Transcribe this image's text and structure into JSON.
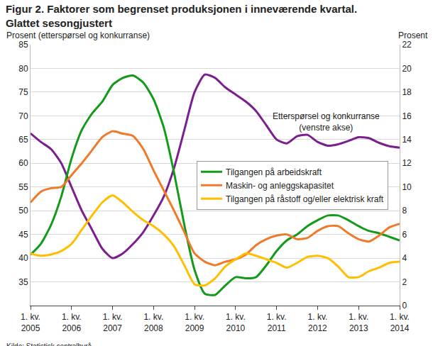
{
  "chart_data": {
    "type": "line",
    "title": "Figur 2. Faktorer som begrenset produksjonen i inneværende kvartal.",
    "subtitle": "Glattet sesongjustert",
    "y_label": "Prosent (etterspørsel og konkurranse)",
    "y2_label": "Prosent",
    "source": "Kilde: Statistisk sentralbyrå.",
    "categories": [
      "1. kv. 2005",
      null,
      null,
      null,
      "1. kv. 2006",
      null,
      null,
      null,
      "1. kv. 2007",
      null,
      null,
      null,
      "1. kv. 2008",
      null,
      null,
      null,
      "1. kv. 2009",
      null,
      null,
      null,
      "1. kv. 2010",
      null,
      null,
      null,
      "1. kv. 2011",
      null,
      null,
      null,
      "1. kv. 2012",
      null,
      null,
      null,
      "1. kv. 2013",
      null,
      null,
      null,
      "1. kv. 2014"
    ],
    "series": [
      {
        "name": "Etterspørsel og konkurranse (venstre akse)",
        "color": "#7b1f8f",
        "axis": "y",
        "values": [
          66.3,
          64.5,
          63,
          60,
          55,
          50,
          46,
          42,
          40,
          41,
          43,
          45.5,
          49,
          53,
          59,
          67,
          75,
          78.7,
          78,
          76,
          74.5,
          73,
          71,
          68,
          65,
          64.2,
          65.7,
          66,
          64.5,
          63.7,
          64,
          64.7,
          65.5,
          65.3,
          64.3,
          63.6,
          63.3
        ]
      },
      {
        "name": "Tilgangen på arbeidskraft",
        "color": "#139a1a",
        "axis": "y2",
        "values": [
          4.3,
          5.2,
          6.8,
          9.2,
          12.4,
          14.8,
          16.2,
          17.2,
          18.6,
          19.2,
          19.4,
          18.8,
          17.4,
          15.0,
          11.2,
          6.8,
          3.0,
          1.0,
          0.9,
          1.7,
          2.4,
          2.3,
          2.4,
          3.4,
          4.6,
          5.5,
          6.0,
          6.7,
          7.2,
          7.6,
          7.6,
          7.2,
          6.7,
          6.3,
          6.1,
          5.8,
          5.5
        ]
      },
      {
        "name": "Maskin- og anleggskapasitet",
        "color": "#f07a2a",
        "axis": "y2",
        "values": [
          8.7,
          9.6,
          9.9,
          10.0,
          11.0,
          12.0,
          13.1,
          14.2,
          14.7,
          14.5,
          14.3,
          13.2,
          11.4,
          9.7,
          8.0,
          6.2,
          4.4,
          3.7,
          3.4,
          3.7,
          3.9,
          4.3,
          5.1,
          5.6,
          5.9,
          6.0,
          5.6,
          5.7,
          6.3,
          6.7,
          6.7,
          6.1,
          5.6,
          5.4,
          5.9,
          6.6,
          6.9
        ]
      },
      {
        "name": "Tilgangen på råstoff og/eller elektrisk kraft",
        "color": "#ffbf00",
        "axis": "y2",
        "values": [
          4.4,
          4.2,
          4.3,
          4.6,
          5.2,
          6.4,
          7.6,
          8.7,
          9.3,
          8.7,
          7.9,
          7.2,
          6.7,
          6.0,
          5.0,
          3.4,
          1.8,
          1.7,
          2.3,
          3.3,
          3.9,
          4.4,
          4.2,
          3.9,
          3.6,
          3.2,
          3.6,
          4.1,
          4.2,
          4.0,
          3.3,
          2.4,
          2.4,
          2.9,
          3.2,
          3.6,
          3.7
        ]
      }
    ],
    "ylim": [
      30,
      85
    ],
    "yticks": [
      35,
      40,
      45,
      50,
      55,
      60,
      65,
      70,
      75,
      80,
      85
    ],
    "y2lim": [
      0,
      22
    ],
    "y2ticks": [
      0,
      2,
      4,
      6,
      8,
      10,
      12,
      14,
      16,
      18,
      20,
      22
    ],
    "grid": true,
    "legend": "right"
  }
}
